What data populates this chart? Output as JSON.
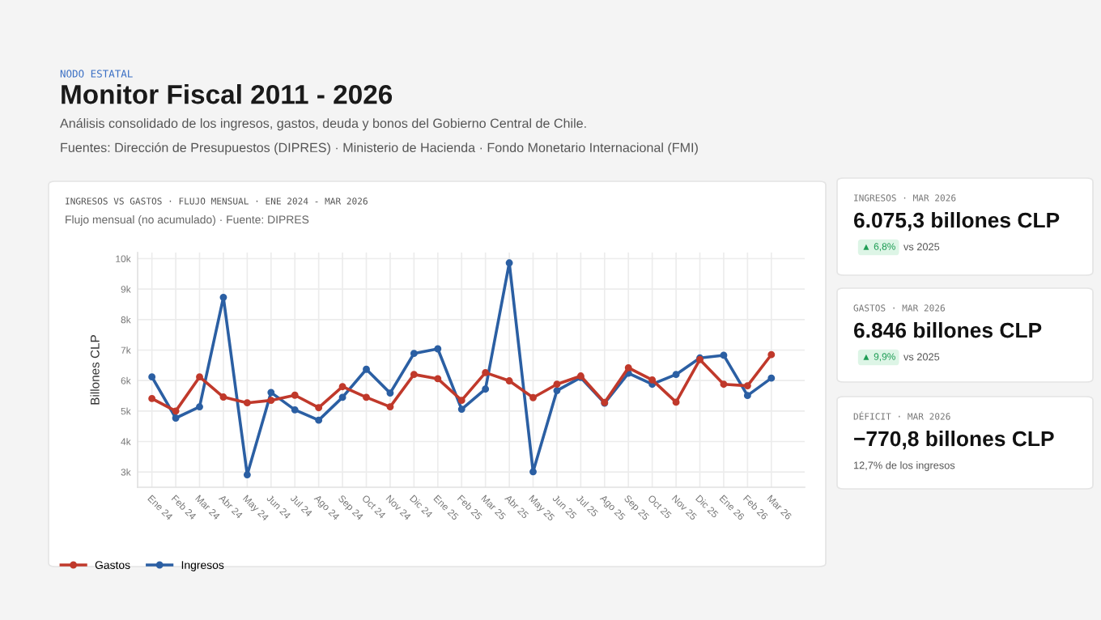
{
  "chart_data": [
    {
      "type": "other",
      "title": "Monitor Fiscal 2011 - 2026",
      "annotations": [
        "NODO ESTATAL",
        "Análisis consolidado de los ingresos, gastos, deuda y bonos del Gobierno Central de Chile.",
        "Fuentes: Dirección de Presupuestos (DIPRES) · Ministerio de Hacienda · Fondo Monetario Internacional (FMI)"
      ]
    },
    {
      "type": "line",
      "title": "INGRESOS VS GASTOS · FLUJO MENSUAL · ENE 2024 - MAR 2026",
      "subtitle": "Flujo mensual (no acumulado) · Fuente: DIPRES",
      "ylabel": "Billones CLP",
      "categories": [
        "Ene 24",
        "Feb 24",
        "Mar 24",
        "Abr 24",
        "May 24",
        "Jun 24",
        "Jul 24",
        "Ago 24",
        "Sep 24",
        "Oct 24",
        "Nov 24",
        "Dic 24",
        "Ene 25",
        "Feb 25",
        "Mar 25",
        "Abr 25",
        "May 25",
        "Jun 25",
        "Jul 25",
        "Ago 25",
        "Sep 25",
        "Oct 25",
        "Nov 25",
        "Dic 25",
        "Ene 26",
        "Feb 26",
        "Mar 26"
      ],
      "series": [
        {
          "name": "Gastos",
          "color": "#c0392b",
          "values": [
            5410,
            5000,
            6120,
            5460,
            5270,
            5350,
            5520,
            5110,
            5800,
            5450,
            5140,
            6200,
            6060,
            5350,
            6260,
            5990,
            5440,
            5880,
            6150,
            5280,
            6420,
            6020,
            5290,
            6690,
            5880,
            5830,
            6850
          ]
        },
        {
          "name": "Ingresos",
          "color": "#2b5fa3",
          "values": [
            6120,
            4770,
            5140,
            8730,
            2910,
            5610,
            5040,
            4700,
            5450,
            6370,
            5590,
            6890,
            7040,
            5060,
            5720,
            9860,
            3010,
            5670,
            6100,
            5260,
            6240,
            5880,
            6200,
            6740,
            6830,
            5510,
            6080
          ]
        }
      ],
      "ylim": [
        2500,
        10200
      ],
      "yticks": [
        {
          "value": 3000,
          "label": "3k"
        },
        {
          "value": 4000,
          "label": "4k"
        },
        {
          "value": 5000,
          "label": "5k"
        },
        {
          "value": 6000,
          "label": "6k"
        },
        {
          "value": 7000,
          "label": "7k"
        },
        {
          "value": 8000,
          "label": "8k"
        },
        {
          "value": 9000,
          "label": "9k"
        },
        {
          "value": 10000,
          "label": "10k"
        }
      ],
      "grid": true,
      "legend": "bottom left",
      "marker": "circle",
      "line_style": "solid"
    },
    {
      "type": "other",
      "title": "INGRESOS · MAR 2026",
      "subtitle": "6.075,3 billones CLP",
      "annotations": [
        "▲ 6,8%",
        "vs 2025"
      ]
    },
    {
      "type": "other",
      "title": "GASTOS · MAR 2026",
      "subtitle": "6.846 billones CLP",
      "annotations": [
        "▲ 9,9%",
        "vs 2025"
      ]
    },
    {
      "type": "other",
      "title": "DÉFICIT · MAR 2026",
      "subtitle": "−770,8 billones CLP",
      "annotations": [
        "12,7% de los ingresos"
      ]
    }
  ]
}
